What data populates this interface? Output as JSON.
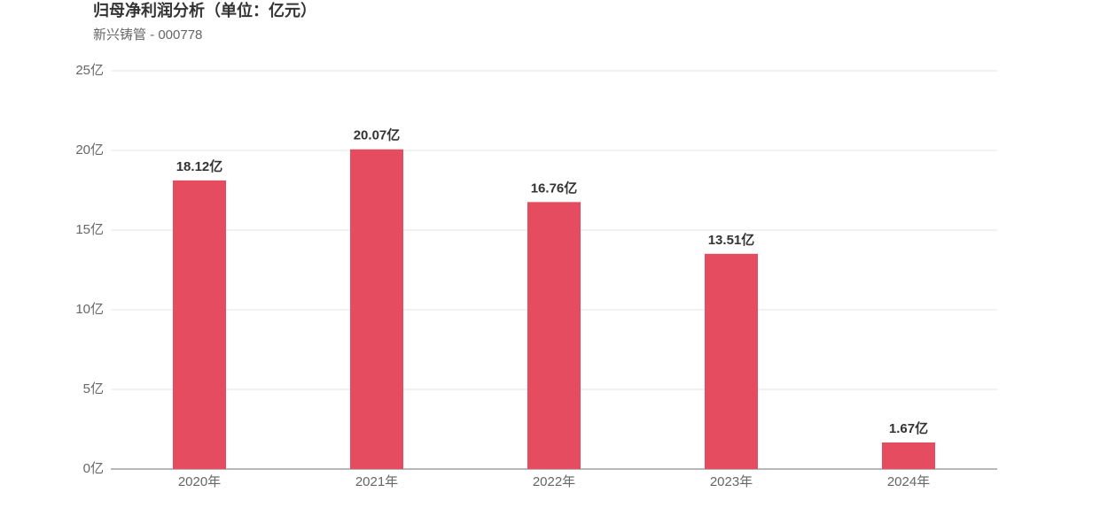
{
  "chart_data": {
    "type": "bar",
    "title": "归母净利润分析（单位：亿元）",
    "subtitle": "新兴铸管 - 000778",
    "categories": [
      "2020年",
      "2021年",
      "2022年",
      "2023年",
      "2024年"
    ],
    "values": [
      18.12,
      20.07,
      16.76,
      13.51,
      1.67
    ],
    "value_labels": [
      "18.12亿",
      "20.07亿",
      "16.76亿",
      "13.51亿",
      "1.67亿"
    ],
    "color": "#e64c5f",
    "ylim": [
      0,
      25
    ],
    "yticks": [
      {
        "value": 0,
        "label": "0亿"
      },
      {
        "value": 5,
        "label": "5亿"
      },
      {
        "value": 10,
        "label": "10亿"
      },
      {
        "value": 15,
        "label": "15亿"
      },
      {
        "value": 20,
        "label": "20亿"
      },
      {
        "value": 25,
        "label": "25亿"
      }
    ],
    "grid": true
  }
}
